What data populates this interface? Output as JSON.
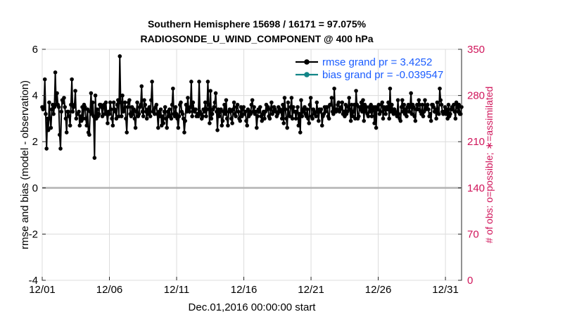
{
  "chart_data": {
    "type": "line",
    "title": "Southern Hemisphere 15698 / 16171 = 97.075%",
    "subtitle": "RADIOSONDE_U_WIND_COMPONENT @ 400 hPa",
    "xlabel": "Dec.01,2016 00:00:00 start",
    "ylabel": "rmse and bias (model - observation)",
    "y2label": "# of obs: o=possible; ∗=assimilated",
    "xlim": [
      0,
      31.2
    ],
    "ylim": [
      -4,
      6
    ],
    "y2lim": [
      0,
      350
    ],
    "x_ticks": [
      0,
      5,
      10,
      15,
      20,
      25,
      30
    ],
    "x_tick_labels": [
      "12/01",
      "12/06",
      "12/11",
      "12/16",
      "12/21",
      "12/26",
      "12/31"
    ],
    "y_ticks": [
      -4,
      -2,
      0,
      2,
      4,
      6
    ],
    "y_tick_labels": [
      "-4",
      "-2",
      "0",
      "2",
      "4",
      "6"
    ],
    "y2_ticks": [
      0,
      70,
      140,
      210,
      280,
      350
    ],
    "y2_tick_labels": [
      "0",
      "70",
      "140",
      "210",
      "280",
      "350"
    ],
    "legend": [
      "rmse grand pr = 3.4252",
      "bias grand pr = -0.039547"
    ],
    "series": [
      {
        "name": "rmse",
        "color": "#000000",
        "values": [
          3.5,
          3.4,
          3.5,
          4.7,
          3.2,
          1.7,
          3.0,
          2.5,
          3.7,
          3.0,
          2.6,
          3.4,
          3.6,
          3.2,
          3.5,
          5.0,
          3.6,
          4.1,
          3.6,
          3.5,
          2.3,
          1.7,
          3.3,
          3.8,
          3.7,
          3.9,
          3.5,
          3.0,
          2.4,
          3.3,
          3.3,
          3.1,
          2.7,
          3.6,
          4.7,
          3.3,
          3.5,
          3.6,
          4.2,
          3.0,
          3.2,
          3.2,
          3.3,
          2.7,
          3.1,
          2.9,
          3.5,
          3.0,
          3.6,
          3.5,
          3.0,
          2.7,
          3.4,
          2.4,
          2.3,
          3.3,
          4.1,
          3.2,
          3.7,
          3.1,
          1.3,
          4.0,
          3.0,
          3.4,
          3.1,
          3.2,
          3.6,
          3.6,
          3.5,
          3.1,
          3.5,
          3.6,
          3.2,
          3.7,
          3.2,
          2.8,
          3.3,
          3.2,
          3.7,
          3.4,
          3.0,
          2.7,
          3.7,
          3.4,
          3.3,
          3.0,
          3.6,
          3.8,
          3.1,
          5.7,
          3.7,
          3.1,
          4.0,
          3.3,
          3.4,
          3.7,
          3.0,
          2.4,
          3.5,
          3.7,
          3.8,
          3.2,
          3.1,
          3.5,
          3.2,
          3.4,
          3.0,
          2.6,
          3.3,
          3.7,
          3.1,
          3.2,
          3.5,
          3.6,
          4.4,
          3.3,
          3.1,
          3.8,
          3.6,
          3.3,
          3.0,
          3.4,
          3.2,
          3.5,
          3.1,
          3.8,
          4.6,
          3.3,
          3.4,
          3.2,
          3.5,
          3.6,
          3.2,
          2.6,
          3.3,
          3.1,
          3.4,
          2.7,
          3.1,
          2.8,
          3.3,
          3.5,
          3.0,
          2.6,
          3.3,
          3.1,
          3.4,
          3.1,
          3.0,
          3.6,
          4.3,
          3.2,
          3.1,
          3.5,
          3.2,
          3.0,
          2.6,
          3.1,
          3.6,
          3.7,
          3.3,
          3.2,
          3.0,
          2.4,
          2.9,
          3.6,
          3.3,
          3.9,
          3.4,
          3.3,
          3.5,
          4.6,
          3.1,
          3.7,
          3.4,
          3.3,
          3.4,
          3.1,
          3.2,
          3.1,
          4.6,
          3.3,
          3.2,
          3.0,
          3.1,
          3.4,
          3.3,
          3.7,
          3.1,
          3.4,
          4.6,
          3.6,
          2.8,
          4.2,
          3.0,
          3.2,
          3.4,
          3.5,
          3.7,
          4.1,
          3.3,
          2.5,
          3.4,
          3.1,
          3.3,
          3.4,
          2.7,
          2.9,
          3.3,
          3.6,
          3.2,
          3.8,
          3.0,
          2.7,
          3.3,
          3.4,
          3.3,
          3.0,
          2.8,
          3.4,
          3.7,
          3.2,
          3.1,
          3.5,
          3.6,
          3.3,
          3.0,
          2.9,
          3.5,
          3.1,
          3.4,
          3.5,
          3.2,
          3.3,
          2.9,
          2.7,
          3.4,
          3.1,
          3.3,
          3.2,
          3.6,
          3.8,
          3.3,
          3.5,
          3.2,
          3.3,
          2.6,
          3.1,
          3.4,
          3.3,
          3.5,
          3.1,
          2.9,
          3.2,
          3.3,
          3.0,
          3.3,
          3.6,
          3.4,
          3.5,
          3.1,
          3.0,
          3.4,
          3.7,
          3.2,
          3.3,
          3.5,
          3.4,
          3.3,
          3.1,
          3.2,
          3.5,
          3.3,
          3.4,
          3.3,
          3.0,
          3.6,
          2.8,
          3.9,
          3.4,
          3.0,
          2.6,
          3.7,
          3.2,
          3.1,
          3.5,
          3.9,
          3.0,
          3.5,
          3.3,
          3.3,
          3.0,
          3.3,
          3.5,
          2.7,
          3.2,
          2.4,
          3.8,
          3.1,
          3.4,
          3.3,
          3.5,
          3.2,
          3.1,
          3.4,
          3.0,
          2.8,
          3.6,
          3.9,
          3.1,
          3.0,
          3.4,
          3.3,
          3.2,
          3.1,
          3.7,
          3.3,
          2.9,
          3.4,
          3.3,
          3.4,
          2.7,
          3.1,
          3.2,
          3.5,
          3.3,
          3.5,
          3.5,
          3.1,
          3.0,
          3.6,
          3.6,
          3.9,
          3.3,
          3.2,
          4.3,
          3.4,
          3.3,
          3.4,
          3.6,
          3.7,
          3.3,
          3.4,
          3.5,
          3.7,
          3.2,
          3.3,
          3.1,
          3.6,
          3.2,
          3.3,
          3.5,
          3.9,
          3.4,
          2.9,
          3.6,
          3.1,
          3.3,
          3.6,
          3.0,
          4.2,
          3.6,
          3.0,
          3.1,
          3.5,
          3.4,
          3.7,
          3.3,
          3.8,
          2.9,
          3.6,
          3.3,
          3.5,
          3.2,
          3.1,
          3.5,
          3.3,
          3.6,
          3.1,
          3.4,
          3.5,
          2.8,
          3.5,
          2.6,
          3.5,
          3.4,
          3.6,
          3.2,
          3.3,
          3.6,
          3.7,
          3.0,
          3.5,
          3.4,
          3.2,
          3.5,
          3.4,
          3.7,
          3.0,
          4.3,
          3.3,
          3.6,
          3.4,
          3.2,
          3.4,
          3.3,
          3.2,
          3.1,
          3.8,
          3.2,
          3.0,
          2.9,
          3.5,
          3.8,
          3.3,
          3.6,
          3.2,
          3.4,
          3.1,
          3.5,
          3.6,
          3.3,
          3.5,
          4.1,
          3.2,
          3.6,
          3.5,
          3.1,
          2.9,
          3.4,
          3.6,
          3.4,
          3.8,
          3.6,
          3.3,
          3.2,
          3.6,
          3.1,
          3.3,
          3.8,
          3.4,
          3.5,
          3.6,
          3.4,
          3.1,
          3.2,
          2.9,
          3.6,
          3.6,
          3.5,
          3.3,
          3.4,
          3.0,
          3.7,
          3.3,
          3.2,
          4.3,
          3.8,
          3.6,
          3.3,
          3.2,
          3.3,
          3.5,
          3.2,
          3.4,
          3.0,
          3.6,
          3.1,
          3.2,
          3.4,
          3.5,
          3.4,
          3.6,
          3.3,
          3.0,
          3.7,
          3.5,
          3.3,
          3.6,
          3.2,
          3.2,
          3.5
        ]
      }
    ]
  }
}
